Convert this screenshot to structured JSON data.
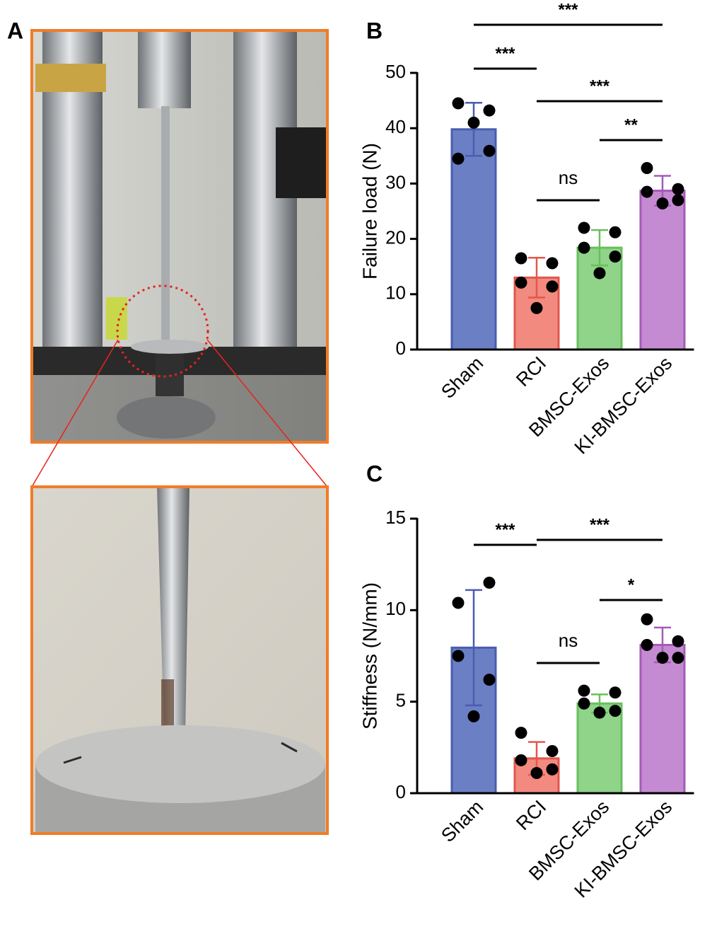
{
  "photo_panel": {
    "panel_label": "A"
  },
  "chart_data": [
    {
      "type": "bar",
      "panel_label": "B",
      "y_label": "Failure load (N)",
      "categories": [
        "Sham",
        "RCI",
        "BMSC-Exos",
        "KI-BMSC-Exos"
      ],
      "values": [
        39.8,
        13,
        18.4,
        28.7
      ],
      "errors": [
        4.8,
        3.6,
        3.2,
        2.7
      ],
      "points": [
        [
          44.5,
          43.2,
          34.5,
          35.9,
          41.0
        ],
        [
          16.5,
          15.6,
          12.1,
          11.4,
          7.5
        ],
        [
          22,
          21.2,
          18.4,
          16.8,
          13.8
        ],
        [
          32.8,
          29.0,
          28.5,
          27.0,
          26.4
        ]
      ],
      "colors": [
        "#6b7fc4",
        "#f28a80",
        "#8fd489",
        "#c58bd2"
      ],
      "edge_colors": [
        "#4a5db0",
        "#e2574c",
        "#68bf5c",
        "#a45bb6"
      ],
      "ylim": [
        0,
        50
      ],
      "yticks": [
        0,
        10,
        20,
        30,
        40,
        50
      ],
      "significance": [
        {
          "groups": [
            "Sham",
            "KI-BMSC-Exos"
          ],
          "label": "***"
        },
        {
          "groups": [
            "Sham",
            "RCI"
          ],
          "label": "***"
        },
        {
          "groups": [
            "RCI",
            "KI-BMSC-Exos"
          ],
          "label": "***"
        },
        {
          "groups": [
            "BMSC-Exos",
            "KI-BMSC-Exos"
          ],
          "label": "**"
        },
        {
          "groups": [
            "RCI",
            "BMSC-Exos"
          ],
          "label": "ns"
        }
      ]
    },
    {
      "type": "bar",
      "panel_label": "C",
      "y_label": "Stiffness (N/mm)",
      "categories": [
        "Sham",
        "RCI",
        "BMSC-Exos",
        "KI-BMSC-Exos"
      ],
      "values": [
        7.95,
        1.9,
        4.9,
        8.1
      ],
      "errors": [
        3.15,
        0.9,
        0.5,
        0.95
      ],
      "points": [
        [
          10.4,
          11.5,
          7.5,
          6.2,
          4.2
        ],
        [
          3.3,
          2.3,
          1.8,
          1.3,
          1.1
        ],
        [
          5.6,
          5.5,
          4.9,
          4.5,
          4.4
        ],
        [
          9.5,
          8.3,
          8.1,
          7.4,
          7.4
        ]
      ],
      "colors": [
        "#6b7fc4",
        "#f28a80",
        "#8fd489",
        "#c58bd2"
      ],
      "edge_colors": [
        "#4a5db0",
        "#e2574c",
        "#68bf5c",
        "#a45bb6"
      ],
      "ylim": [
        0,
        15
      ],
      "yticks": [
        0,
        5,
        10,
        15
      ],
      "significance": [
        {
          "groups": [
            "Sham",
            "RCI"
          ],
          "label": "***"
        },
        {
          "groups": [
            "RCI",
            "KI-BMSC-Exos"
          ],
          "label": "***"
        },
        {
          "groups": [
            "BMSC-Exos",
            "KI-BMSC-Exos"
          ],
          "label": "*"
        },
        {
          "groups": [
            "RCI",
            "BMSC-Exos"
          ],
          "label": "ns"
        }
      ]
    }
  ]
}
